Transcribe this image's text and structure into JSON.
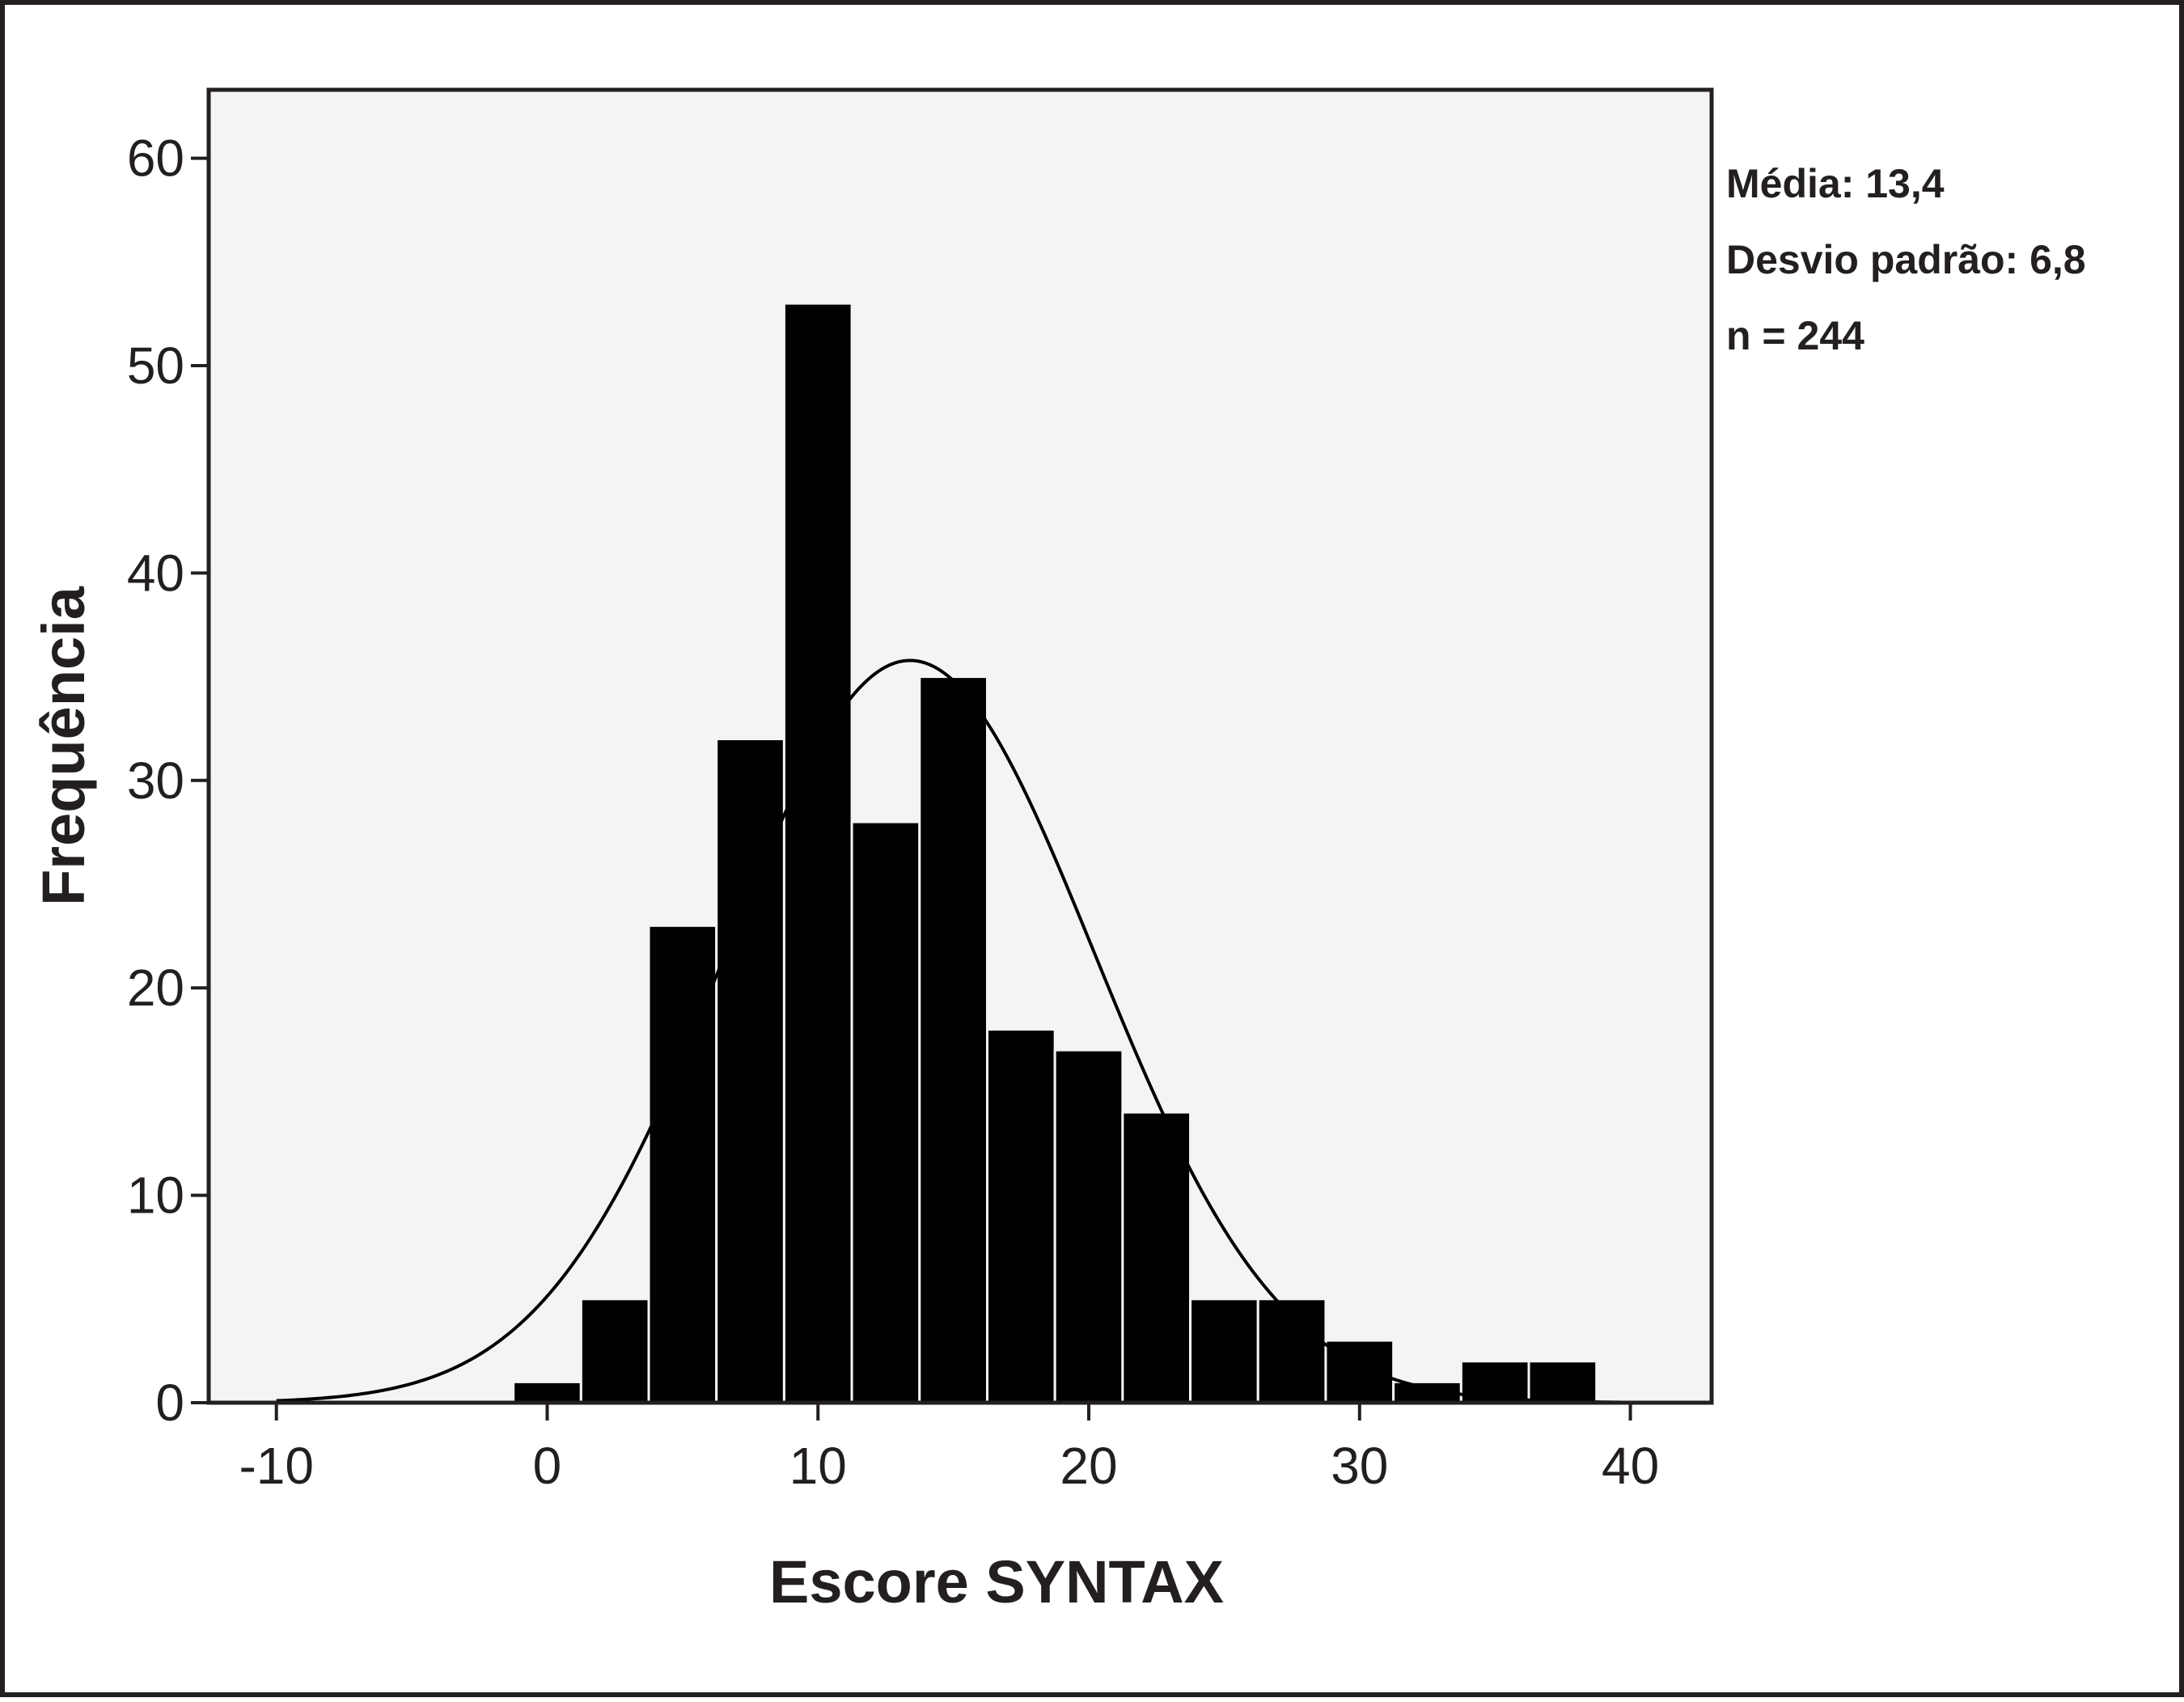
{
  "chart_data": {
    "type": "bar",
    "title": "",
    "xlabel": "Escore SYNTAX",
    "ylabel": "Frequência",
    "xlim": [
      -12.5,
      43
    ],
    "ylim": [
      0,
      63.3
    ],
    "x_ticks": [
      -10,
      0,
      10,
      20,
      30,
      40
    ],
    "y_ticks": [
      0,
      10,
      20,
      30,
      40,
      50,
      60
    ],
    "bin_width": 2.5,
    "bins": [
      {
        "x0": -1.25,
        "x1": 1.25,
        "value": 1
      },
      {
        "x0": 1.25,
        "x1": 3.75,
        "value": 5
      },
      {
        "x0": 3.75,
        "x1": 6.25,
        "value": 23
      },
      {
        "x0": 6.25,
        "x1": 8.75,
        "value": 32
      },
      {
        "x0": 8.75,
        "x1": 11.25,
        "value": 53
      },
      {
        "x0": 11.25,
        "x1": 13.75,
        "value": 28
      },
      {
        "x0": 13.75,
        "x1": 16.25,
        "value": 35
      },
      {
        "x0": 16.25,
        "x1": 18.75,
        "value": 18
      },
      {
        "x0": 18.75,
        "x1": 21.25,
        "value": 17
      },
      {
        "x0": 21.25,
        "x1": 23.75,
        "value": 14
      },
      {
        "x0": 23.75,
        "x1": 26.25,
        "value": 5
      },
      {
        "x0": 26.25,
        "x1": 28.75,
        "value": 5
      },
      {
        "x0": 28.75,
        "x1": 31.25,
        "value": 3
      },
      {
        "x0": 31.25,
        "x1": 33.75,
        "value": 1
      },
      {
        "x0": 33.75,
        "x1": 36.25,
        "value": 2
      },
      {
        "x0": 36.25,
        "x1": 38.75,
        "value": 2
      }
    ],
    "normal_curve": {
      "mean": 13.4,
      "sd": 6.8,
      "n": 244
    },
    "grid": false,
    "legend": "none"
  },
  "stats": {
    "mean": "Média: 13,4",
    "sd": "Desvio padrão: 6,8",
    "n": "n = 244"
  },
  "colors": {
    "plot_background": "#f4f4f4",
    "bars": "#000000",
    "axes": "#231f20",
    "curve": "#000000"
  }
}
